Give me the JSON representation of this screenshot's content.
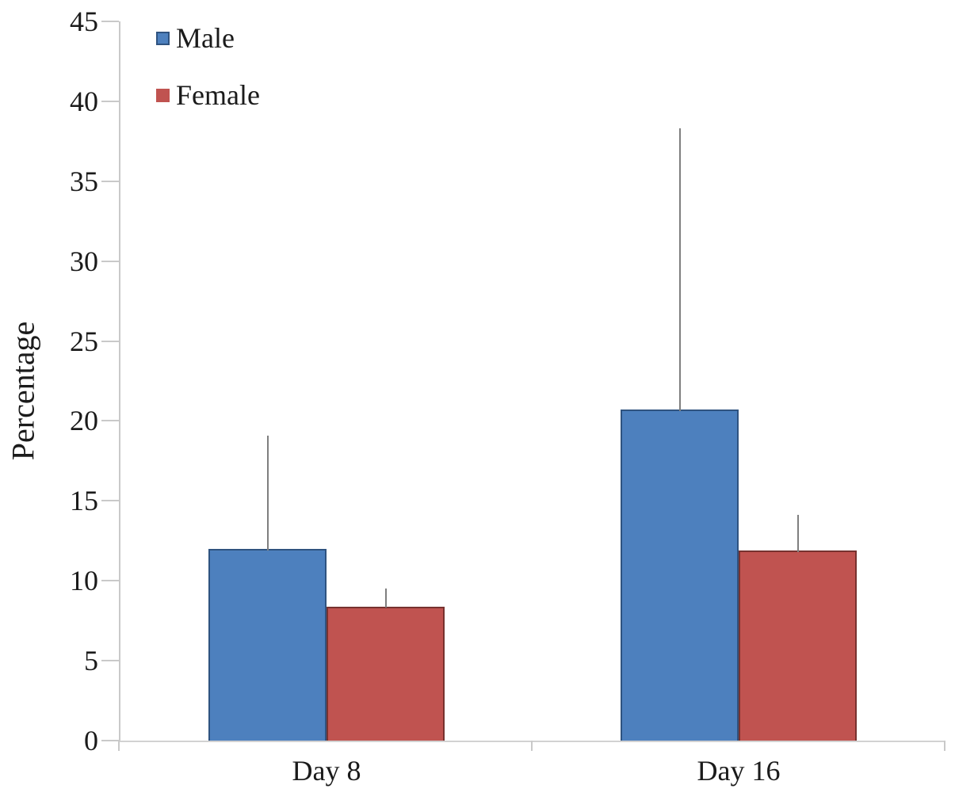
{
  "chart_data": {
    "type": "bar",
    "title": "",
    "ylabel": "Percentage",
    "xlabel": "",
    "categories": [
      "Day 8",
      "Day 16"
    ],
    "series": [
      {
        "name": "Male",
        "color": "#4d80be",
        "border_color": "#2f5380",
        "values": [
          12.0,
          20.7
        ],
        "error_upper": [
          19.1,
          38.3
        ]
      },
      {
        "name": "Female",
        "color": "#c05350",
        "border_color": "#77322f",
        "values": [
          8.4,
          11.9
        ],
        "error_upper": [
          9.5,
          14.1
        ]
      }
    ],
    "ylim": [
      0,
      45
    ],
    "yticks": [
      0,
      5,
      10,
      15,
      20,
      25,
      30,
      35,
      40,
      45
    ],
    "grid": false,
    "legend_position": "top-left-inside",
    "error_bar_color": "#7f7f7f",
    "axis_color": "#c9c9c9",
    "text_color": "#1b1b1b"
  }
}
